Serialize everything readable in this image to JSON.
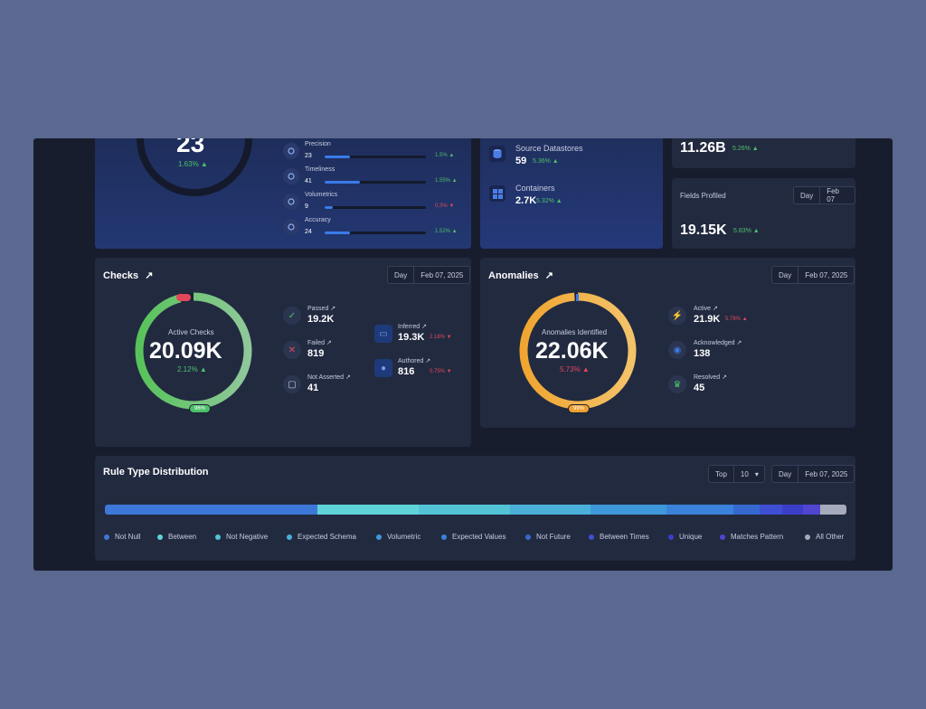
{
  "top": {
    "ring_value": "23",
    "ring_change": "1.63% ▲",
    "dimensions": [
      {
        "label": "Precision",
        "value": "23",
        "change": "1.5% ▲",
        "progress": 0.25,
        "trend": "up"
      },
      {
        "label": "Timeliness",
        "value": "41",
        "change": "1.55% ▲",
        "progress": 0.35,
        "trend": "up"
      },
      {
        "label": "Volumetrics",
        "value": "9",
        "change": "0.3% ▼",
        "progress": 0.08,
        "trend": "down"
      },
      {
        "label": "Accuracy",
        "value": "24",
        "change": "1.52% ▲",
        "progress": 0.25,
        "trend": "up"
      }
    ],
    "datastores": [
      {
        "label": "Source Datastores",
        "value": "59",
        "change": "5.36% ▲"
      },
      {
        "label": "Containers",
        "value": "2.7K",
        "change": "5.32% ▲"
      }
    ],
    "records": {
      "value": "11.26B",
      "change": "5.26% ▲"
    },
    "fields": {
      "label": "Fields Profiled",
      "value": "19.15K",
      "change": "5.83% ▲",
      "period": "Day",
      "date": "Feb 07"
    }
  },
  "checks": {
    "title": "Checks",
    "period": "Day",
    "date": "Feb 07, 2025",
    "ring_label": "Active Checks",
    "ring_value": "20.09K",
    "ring_change": "2.12% ▲",
    "ring_badge": "96%",
    "ring_percent": 0.96,
    "stats": [
      {
        "label": "Passed ↗",
        "value": "19.2K",
        "icon": "check-icon",
        "color": "#4cc06a"
      },
      {
        "label": "Failed ↗",
        "value": "819",
        "icon": "x-icon",
        "color": "#e0485a"
      },
      {
        "label": "Not Asserted ↗",
        "value": "41",
        "icon": "note-icon",
        "color": "#c8cde0"
      }
    ],
    "stats2": [
      {
        "label": "Inferred ↗",
        "value": "19.3K",
        "change": "2.18% ▼",
        "icon": "monitor-icon"
      },
      {
        "label": "Authored ↗",
        "value": "816",
        "change": "0.75% ▼",
        "icon": "user-icon"
      }
    ]
  },
  "anomalies": {
    "title": "Anomalies",
    "period": "Day",
    "date": "Feb 07, 2025",
    "ring_label": "Anomalies Identified",
    "ring_value": "22.06K",
    "ring_change": "5.73% ▲",
    "ring_badge": "99%",
    "ring_percent": 0.99,
    "stats": [
      {
        "label": "Active ↗",
        "value": "21.9K",
        "change": "5.78% ▲",
        "icon": "bolt-icon",
        "color": "#f0a030"
      },
      {
        "label": "Acknowledged ↗",
        "value": "138",
        "change": "",
        "icon": "eye-icon",
        "color": "#3a7be8"
      },
      {
        "label": "Resolved ↗",
        "value": "45",
        "change": "",
        "icon": "trophy-icon",
        "color": "#4cc06a"
      }
    ]
  },
  "rules": {
    "title": "Rule Type Distribution",
    "top_label": "Top",
    "top_value": "10",
    "period": "Day",
    "date": "Feb 07, 2025",
    "segments": [
      {
        "name": "Not Null",
        "share": 0.287,
        "color": "#3d78d8"
      },
      {
        "name": "Between",
        "share": 0.137,
        "color": "#5fd4d8"
      },
      {
        "name": "Not Negative",
        "share": 0.123,
        "color": "#52c4d6"
      },
      {
        "name": "Expected Schema",
        "share": 0.108,
        "color": "#4ab0da"
      },
      {
        "name": "Volumetric",
        "share": 0.103,
        "color": "#3f97dc"
      },
      {
        "name": "Expected Values",
        "share": 0.09,
        "color": "#3b82da"
      },
      {
        "name": "Not Future",
        "share": 0.035,
        "color": "#3669d0"
      },
      {
        "name": "Between Times",
        "share": 0.031,
        "color": "#3f4fd4"
      },
      {
        "name": "Unique",
        "share": 0.028,
        "color": "#3b3ec8"
      },
      {
        "name": "Matches Pattern",
        "share": 0.023,
        "color": "#5045cf"
      },
      {
        "name": "All Other",
        "share": 0.035,
        "color": "#a6abbc"
      }
    ]
  }
}
